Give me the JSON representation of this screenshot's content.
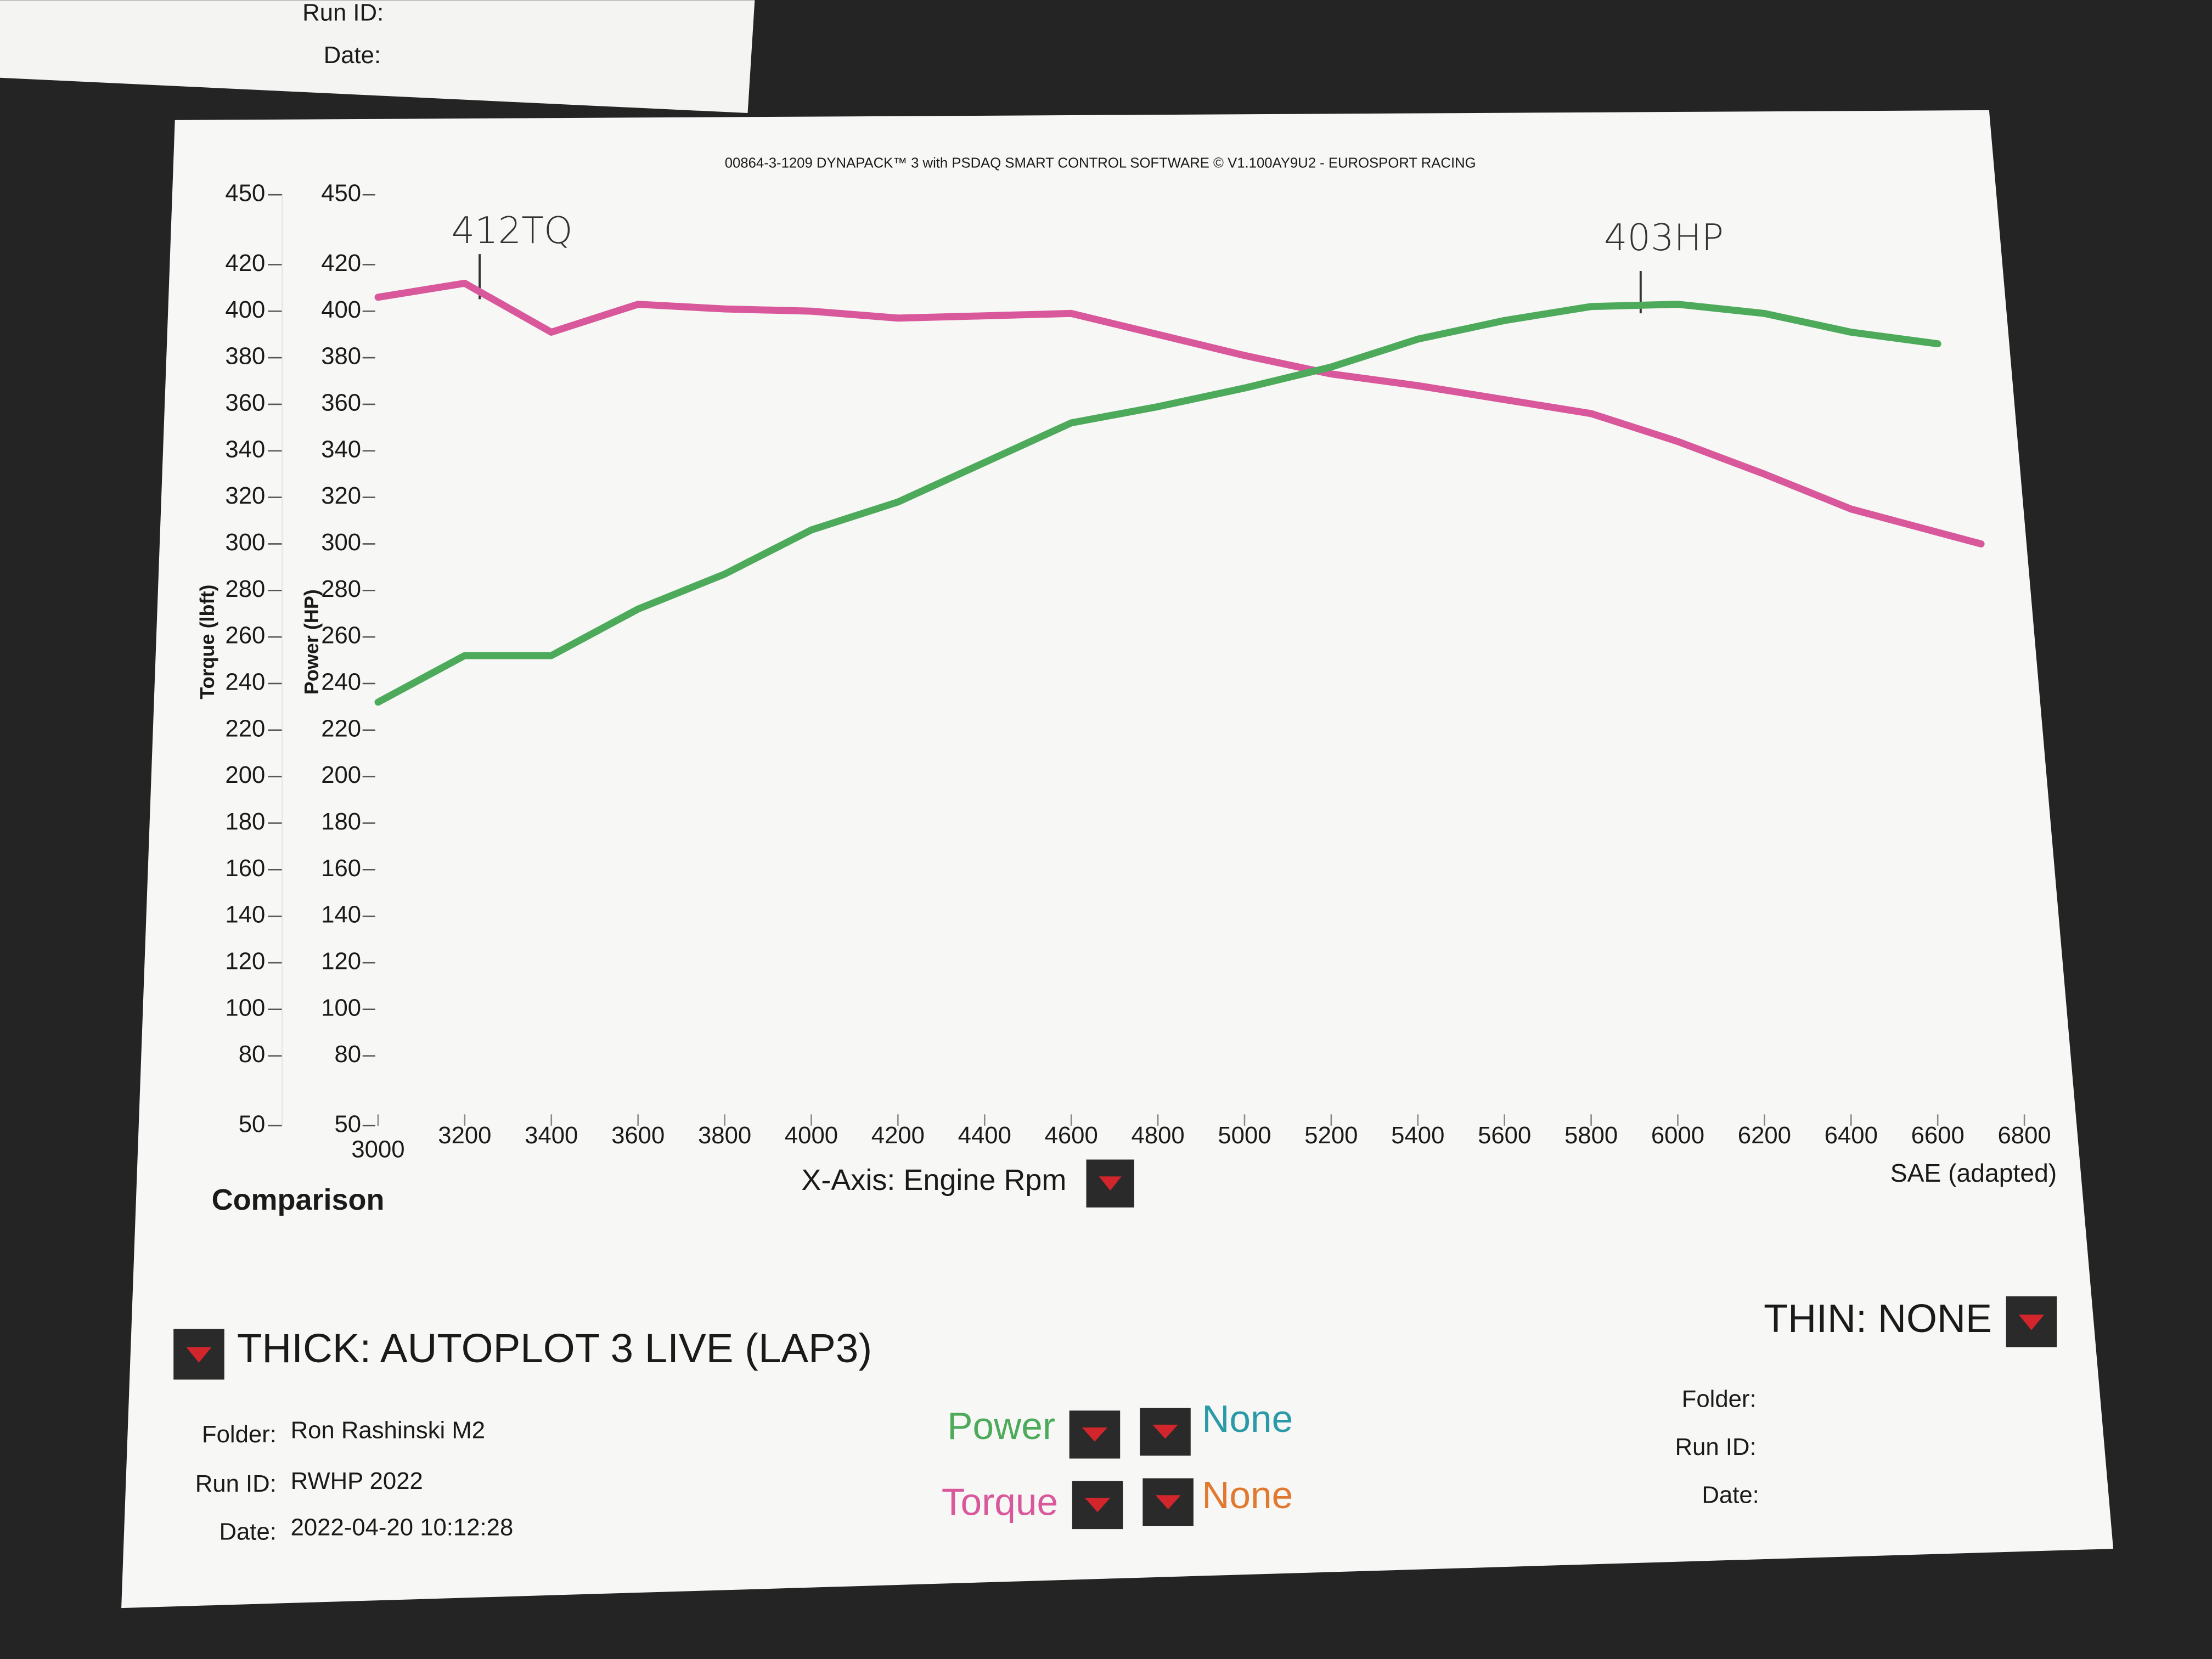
{
  "chart_data": {
    "type": "line",
    "title": "00864-3-1209 DYNAPACK™ 3 with PSDAQ SMART CONTROL SOFTWARE © V1.100AY9U2 - EUROSPORT RACING",
    "x_label": "X-Axis: Engine Rpm",
    "y_label": "Torque (lbft)",
    "y2_label": "Power (HP)",
    "x": [
      3000,
      3200,
      3400,
      3600,
      3800,
      4000,
      4200,
      4400,
      4600,
      4800,
      5000,
      5200,
      5400,
      5600,
      5800,
      6000,
      6200,
      6400,
      6600,
      6700
    ],
    "series": [
      {
        "name": "Torque",
        "color": "#d9579b",
        "values": [
          406,
          412,
          391,
          403,
          401,
          400,
          397,
          398,
          399,
          390,
          381,
          373,
          368,
          362,
          356,
          344,
          330,
          315,
          305,
          300
        ]
      },
      {
        "name": "Power",
        "color": "#4daa5b",
        "axis": "y2",
        "values": [
          232,
          252,
          252,
          272,
          287,
          306,
          318,
          335,
          352,
          359,
          367,
          376,
          388,
          396,
          402,
          403,
          399,
          391,
          386,
          null
        ]
      }
    ],
    "xlim": [
      3000,
      6800
    ],
    "xticks": [
      3000,
      3200,
      3400,
      3600,
      3800,
      4000,
      4200,
      4400,
      4600,
      4800,
      5000,
      5200,
      5400,
      5600,
      5800,
      6000,
      6200,
      6400,
      6600,
      6800
    ],
    "ylim": [
      50,
      450
    ],
    "yticks": [
      50,
      80,
      100,
      120,
      140,
      160,
      180,
      200,
      220,
      240,
      260,
      280,
      300,
      320,
      340,
      360,
      380,
      400,
      420,
      450
    ],
    "y2lim": [
      50,
      450
    ],
    "y2ticks": [
      50,
      80,
      100,
      120,
      140,
      160,
      180,
      200,
      220,
      240,
      260,
      280,
      300,
      320,
      340,
      360,
      380,
      400,
      420,
      450
    ],
    "grid": false,
    "annotations": [
      "412TQ",
      "403HP"
    ]
  },
  "panel": {
    "background_paper": {
      "run_id_label": "Run ID:",
      "date_label": "Date:"
    },
    "comparison": "Comparison",
    "rating": "SAE (adapted)",
    "thick": {
      "title": "THICK: AUTOPLOT 3 LIVE (LAP3)",
      "folder_label": "Folder:",
      "folder": "Ron Rashinski M2",
      "run_id_label": "Run ID:",
      "run_id": "RWHP 2022",
      "date_label": "Date:",
      "date": "2022-04-20 10:12:28"
    },
    "thin": {
      "title": "THIN: NONE",
      "folder_label": "Folder:",
      "run_id_label": "Run ID:",
      "date_label": "Date:"
    },
    "thin_series": [
      {
        "name": "None",
        "color": "#2b9aa8"
      },
      {
        "name": "None",
        "color": "#e07a30"
      }
    ]
  }
}
